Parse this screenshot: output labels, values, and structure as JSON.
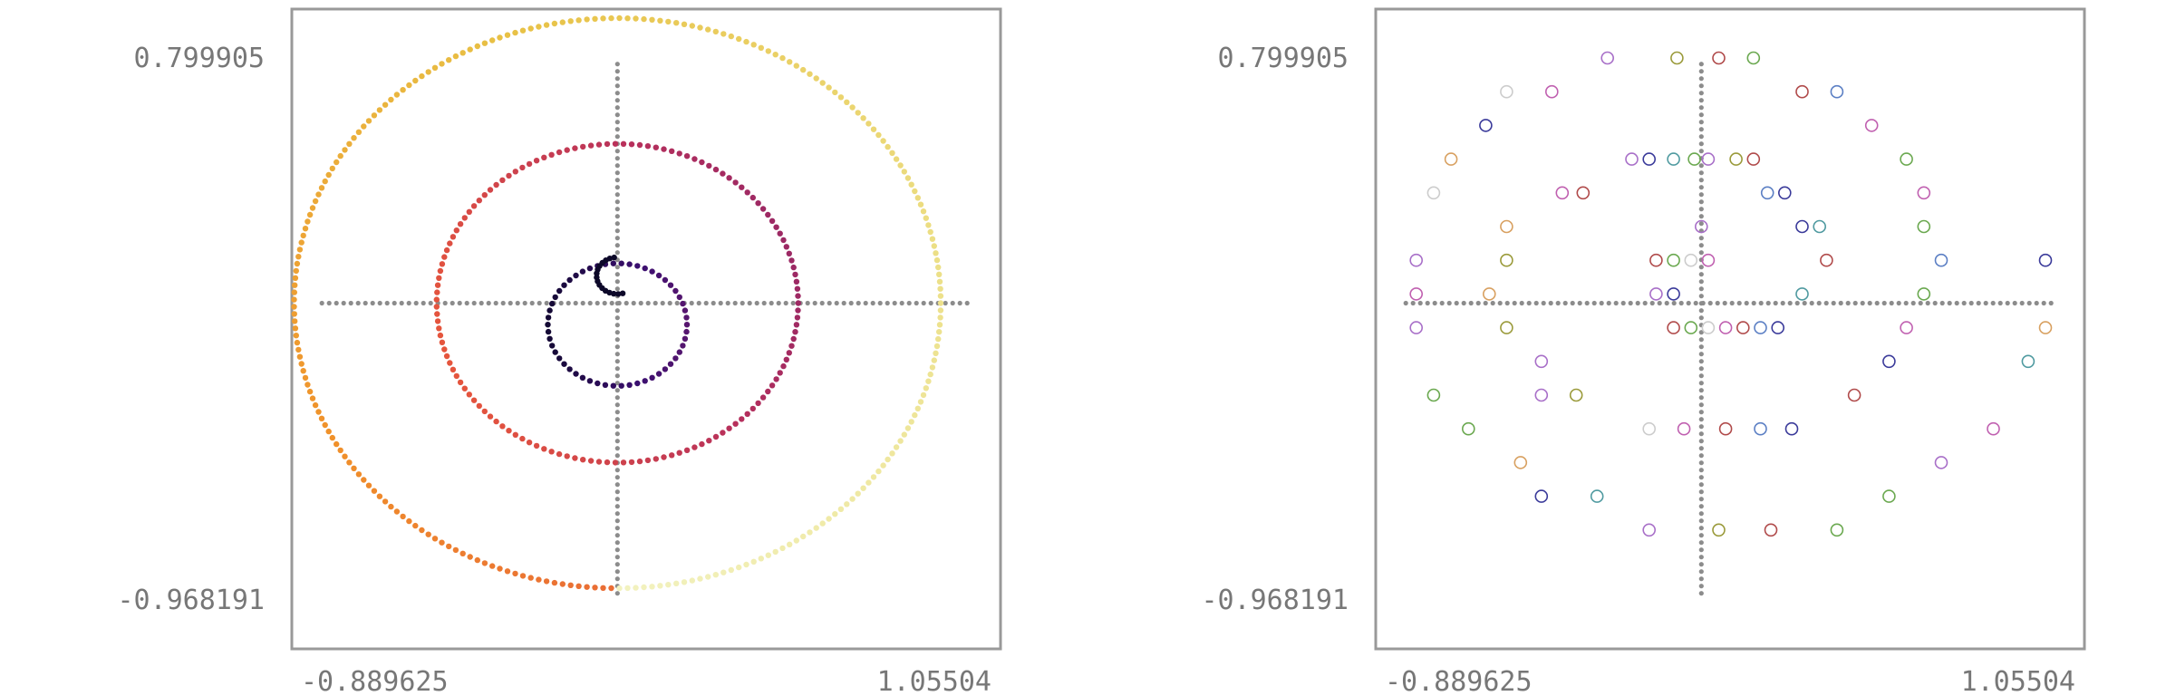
{
  "chart_data": [
    {
      "type": "scatter",
      "style": "filled-dots",
      "xlim": [
        -0.889625,
        1.05504
      ],
      "ylim": [
        -0.968191,
        0.799905
      ],
      "x_tick_labels": [
        "-0.889625",
        "1.05504"
      ],
      "y_tick_labels": [
        "0.799905",
        "-0.968191"
      ],
      "colormap": [
        "#0d0829",
        "#3b0f70",
        "#7a1f6e",
        "#b7305c",
        "#e5553d",
        "#f0902a",
        "#e8c145",
        "#ecdf86",
        "#f2f2c0"
      ],
      "series": [
        {
          "shape": "ring",
          "cx": 0.0,
          "cy": 0.0,
          "r": 0.93
        },
        {
          "shape": "ring",
          "cx": 0.0,
          "cy": 0.0,
          "r": 0.52
        },
        {
          "shape": "ring",
          "cx": 0.0,
          "cy": -0.07,
          "r": 0.2
        },
        {
          "shape": "arc",
          "cx": 0.0,
          "cy": 0.09,
          "r": 0.06
        },
        {
          "shape": "crosshair",
          "x": [
            -0.85,
            1.02
          ],
          "y": [
            -0.95,
            0.78
          ]
        }
      ]
    },
    {
      "type": "scatter",
      "style": "hollow-circles",
      "xlim": [
        -0.889625,
        1.05504
      ],
      "ylim": [
        -0.968191,
        0.799905
      ],
      "x_tick_labels": [
        "-0.889625",
        "1.05504"
      ],
      "y_tick_labels": [
        "0.799905",
        "-0.968191"
      ],
      "colors": [
        "#a86fc8",
        "#5b7fc4",
        "#6aa84f",
        "#d8a060",
        "#b04a4a",
        "#4f9aa0",
        "#c060b0",
        "#9a9a3a",
        "#3a3a9a",
        "#cccccc"
      ],
      "points": [
        [
          -0.27,
          0.8
        ],
        [
          -0.07,
          0.8
        ],
        [
          0.05,
          0.8
        ],
        [
          0.15,
          0.8
        ],
        [
          -0.56,
          0.69
        ],
        [
          -0.43,
          0.69
        ],
        [
          0.29,
          0.69
        ],
        [
          0.39,
          0.69
        ],
        [
          -0.62,
          0.58
        ],
        [
          0.49,
          0.58
        ],
        [
          -0.72,
          0.47
        ],
        [
          -0.2,
          0.47
        ],
        [
          -0.15,
          0.47
        ],
        [
          -0.08,
          0.47
        ],
        [
          -0.02,
          0.47
        ],
        [
          0.02,
          0.47
        ],
        [
          0.1,
          0.47
        ],
        [
          0.15,
          0.47
        ],
        [
          0.59,
          0.47
        ],
        [
          -0.77,
          0.36
        ],
        [
          -0.4,
          0.36
        ],
        [
          -0.34,
          0.36
        ],
        [
          0.19,
          0.36
        ],
        [
          0.24,
          0.36
        ],
        [
          0.64,
          0.36
        ],
        [
          -0.56,
          0.25
        ],
        [
          0.0,
          0.25
        ],
        [
          0.29,
          0.25
        ],
        [
          0.34,
          0.25
        ],
        [
          0.64,
          0.25
        ],
        [
          -0.82,
          0.14
        ],
        [
          -0.56,
          0.14
        ],
        [
          -0.13,
          0.14
        ],
        [
          -0.08,
          0.14
        ],
        [
          -0.03,
          0.14
        ],
        [
          0.02,
          0.14
        ],
        [
          0.36,
          0.14
        ],
        [
          0.69,
          0.14
        ],
        [
          0.99,
          0.14
        ],
        [
          -0.82,
          0.03
        ],
        [
          -0.61,
          0.03
        ],
        [
          -0.13,
          0.03
        ],
        [
          -0.08,
          0.03
        ],
        [
          0.29,
          0.03
        ],
        [
          0.64,
          0.03
        ],
        [
          -0.82,
          -0.08
        ],
        [
          -0.56,
          -0.08
        ],
        [
          -0.08,
          -0.08
        ],
        [
          -0.03,
          -0.08
        ],
        [
          0.02,
          -0.08
        ],
        [
          0.07,
          -0.08
        ],
        [
          0.12,
          -0.08
        ],
        [
          0.17,
          -0.08
        ],
        [
          0.22,
          -0.08
        ],
        [
          0.59,
          -0.08
        ],
        [
          0.99,
          -0.08
        ],
        [
          -0.46,
          -0.19
        ],
        [
          0.54,
          -0.19
        ],
        [
          0.94,
          -0.19
        ],
        [
          -0.77,
          -0.3
        ],
        [
          -0.46,
          -0.3
        ],
        [
          -0.36,
          -0.3
        ],
        [
          0.44,
          -0.3
        ],
        [
          -0.67,
          -0.41
        ],
        [
          -0.15,
          -0.41
        ],
        [
          -0.05,
          -0.41
        ],
        [
          0.07,
          -0.41
        ],
        [
          0.17,
          -0.41
        ],
        [
          0.26,
          -0.41
        ],
        [
          0.84,
          -0.41
        ],
        [
          -0.52,
          -0.52
        ],
        [
          0.69,
          -0.52
        ],
        [
          -0.46,
          -0.63
        ],
        [
          -0.3,
          -0.63
        ],
        [
          0.54,
          -0.63
        ],
        [
          -0.15,
          -0.74
        ],
        [
          0.05,
          -0.74
        ],
        [
          0.2,
          -0.74
        ],
        [
          0.39,
          -0.74
        ]
      ],
      "crosshair": {
        "x": [
          -0.85,
          1.02
        ],
        "y": [
          -0.95,
          0.78
        ]
      }
    }
  ]
}
